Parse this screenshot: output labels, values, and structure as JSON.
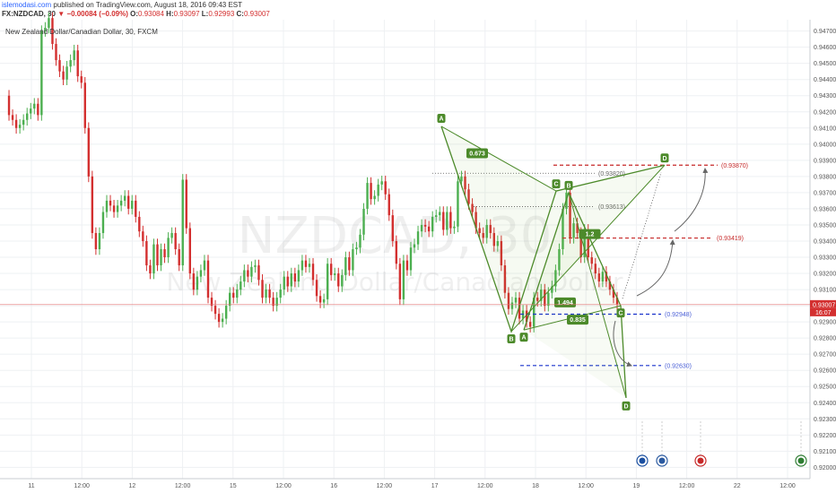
{
  "header": {
    "site": "islemodasi.com",
    "published": " published on TradingView.com, August 18, 2016 09:43 EST",
    "symbol": "FX:NZDCAD, 30",
    "change": "▼ −0.00084 (−0.09%)",
    "o_label": "O:",
    "o": "0.93084",
    "h_label": "H:",
    "h": "0.93097",
    "l_label": "L:",
    "l": "0.92993",
    "c_label": "C:",
    "c": "0.93007"
  },
  "chart_title": "New Zealand Dollar/Canadian Dollar, 30, FXCM",
  "watermark": {
    "symbol": "NZDCAD, 30",
    "name": "New Zealand Dollar/Canadian Dollar"
  },
  "colors": {
    "up": "#4caf50",
    "down": "#d32f2f",
    "pattern": "#4c8a2a",
    "red_level": "#c62828",
    "blue_level": "#1a33cc"
  },
  "chart_data": {
    "type": "candlestick",
    "ylim": [
      0.9193,
      0.9477
    ],
    "y_ticks": [
      "0.94700",
      "0.94600",
      "0.94500",
      "0.94400",
      "0.94300",
      "0.94200",
      "0.94100",
      "0.94000",
      "0.93900",
      "0.93800",
      "0.93700",
      "0.93600",
      "0.93500",
      "0.93400",
      "0.93300",
      "0.93200",
      "0.93100",
      "0.93000",
      "0.92900",
      "0.92800",
      "0.92700",
      "0.92600",
      "0.92500",
      "0.92400",
      "0.92300",
      "0.92200",
      "0.92100",
      "0.92000"
    ],
    "x_ticks": [
      "11",
      "12:00",
      "12",
      "12:00",
      "15",
      "12:00",
      "16",
      "12:00",
      "17",
      "12:00",
      "18",
      "12:00",
      "19",
      "12:00",
      "22",
      "12:00"
    ],
    "last_price": "0.93007",
    "countdown": "16:07",
    "series_close": [
      0.943,
      0.9418,
      0.9415,
      0.941,
      0.9412,
      0.9415,
      0.9419,
      0.9422,
      0.9425,
      0.9418,
      0.947,
      0.9472,
      0.9478,
      0.9462,
      0.9452,
      0.9445,
      0.944,
      0.9448,
      0.9452,
      0.9458,
      0.9442,
      0.9438,
      0.941,
      0.938,
      0.9345,
      0.9335,
      0.9345,
      0.9358,
      0.9365,
      0.9362,
      0.9358,
      0.9362,
      0.9365,
      0.9368,
      0.936,
      0.9365,
      0.9355,
      0.9346,
      0.934,
      0.9325,
      0.932,
      0.9338,
      0.9325,
      0.9335,
      0.933,
      0.9342,
      0.9345,
      0.9335,
      0.9325,
      0.9378,
      0.9348,
      0.932,
      0.931,
      0.9318,
      0.9322,
      0.9328,
      0.9305,
      0.93,
      0.9295,
      0.929,
      0.9292,
      0.93,
      0.9308,
      0.9305,
      0.931,
      0.9315,
      0.9322,
      0.9318,
      0.9324,
      0.9325,
      0.9316,
      0.9305,
      0.931,
      0.9305,
      0.93,
      0.9305,
      0.931,
      0.9318,
      0.9312,
      0.932,
      0.9315,
      0.9322,
      0.9328,
      0.9324,
      0.9326,
      0.9316,
      0.9306,
      0.9302,
      0.9304,
      0.9326,
      0.9319,
      0.932,
      0.9312,
      0.9319,
      0.933,
      0.9322,
      0.9335,
      0.9336,
      0.9344,
      0.936,
      0.9376,
      0.9366,
      0.9368,
      0.9375,
      0.9377,
      0.9369,
      0.9356,
      0.934,
      0.9326,
      0.9304,
      0.9328,
      0.9322,
      0.9336,
      0.9338,
      0.9346,
      0.935,
      0.9349,
      0.9346,
      0.9355,
      0.9356,
      0.9358,
      0.9347,
      0.9358,
      0.9348,
      0.9349,
      0.9377,
      0.938,
      0.9372,
      0.9363,
      0.9358,
      0.9348,
      0.9345,
      0.9342,
      0.935,
      0.9345,
      0.9337,
      0.934,
      0.9325,
      0.9308,
      0.9298,
      0.9302,
      0.9305,
      0.9292,
      0.9297,
      0.929,
      0.9287,
      0.9305,
      0.9303,
      0.931,
      0.93,
      0.9308,
      0.9312,
      0.9322,
      0.9335,
      0.936,
      0.937,
      0.9342,
      0.9351,
      0.9345,
      0.933,
      0.9347,
      0.933,
      0.9326,
      0.932,
      0.9315,
      0.9321,
      0.9315,
      0.931,
      0.9305,
      0.9301
    ],
    "pattern_points": [
      {
        "label": "A",
        "x": 492,
        "y": 0.9411
      },
      {
        "label": "B",
        "x": 570,
        "y": 0.9284
      },
      {
        "label": "C",
        "x": 620,
        "y": 0.9371
      },
      {
        "label": "D",
        "x": 741,
        "y": 0.9387
      },
      {
        "label": "A",
        "x": 584,
        "y": 0.9285
      },
      {
        "label": "B",
        "x": 634,
        "y": 0.937
      },
      {
        "label": "C",
        "x": 692,
        "y": 0.93
      },
      {
        "label": "D",
        "x": 698,
        "y": 0.9243
      }
    ],
    "ratio_labels": [
      "0.673",
      "1.2",
      "0.835",
      "1.494"
    ],
    "levels": [
      {
        "label": "(0.93870)",
        "value": 0.9387,
        "style": "red"
      },
      {
        "label": "(0.93820)",
        "value": 0.9382,
        "style": "gray"
      },
      {
        "label": "(0.93613)",
        "value": 0.93613,
        "style": "gray"
      },
      {
        "label": "(0.93419)",
        "value": 0.93419,
        "style": "red"
      },
      {
        "label": "(0.92948)",
        "value": 0.92948,
        "style": "blue"
      },
      {
        "label": "(0.92630)",
        "value": 0.9263,
        "style": "blue"
      }
    ]
  }
}
